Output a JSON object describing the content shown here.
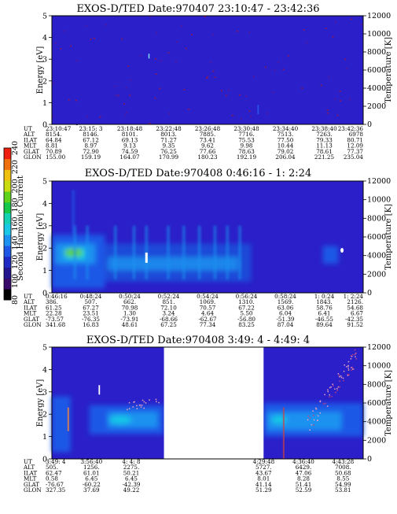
{
  "colorbar": {
    "label": "Second Harmonic Current",
    "ticks": [
      "80",
      "100",
      "120",
      "140",
      "160",
      "180",
      "200",
      "220",
      "240"
    ],
    "colors": [
      "#000000",
      "#3a0a6a",
      "#23168f",
      "#1f2bc4",
      "#1f58e6",
      "#1e92f0",
      "#19c8e6",
      "#15d2b4",
      "#16c84a",
      "#5fd21a",
      "#c8dc10",
      "#f0c010",
      "#f07010",
      "#f02010"
    ]
  },
  "chart_data": [
    {
      "type": "heatmap",
      "title": "EXOS-D/TED   Date:970407  23:10:47 - 23:42:36",
      "ylabel": "Energy [eV]",
      "y2label": "Temperature [K]",
      "ylim": [
        0,
        5
      ],
      "y2lim": [
        0,
        12000
      ],
      "yticks": [
        "0",
        "1",
        "2",
        "3",
        "4",
        "5"
      ],
      "y2ticks": [
        "0",
        "2000",
        "4000",
        "6000",
        "8000",
        "10000",
        "12000"
      ],
      "gaps": [],
      "background_color": "#2a1fc8",
      "table": {
        "rows": [
          "UT",
          "ALT",
          "ILAT",
          "MLT",
          "GLAT",
          "GLON"
        ],
        "columns": [
          [
            "23:10:47",
            "8154.",
            "64.84",
            "8.81",
            "70.89",
            "155.00"
          ],
          [
            "23:15: 3",
            "8146.",
            "67.12",
            "8.97",
            "72.90",
            "159.19"
          ],
          [
            "23:18:48",
            "8101.",
            "69.13",
            "9.13",
            "74.59",
            "164.07"
          ],
          [
            "23:22:48",
            "8013.",
            "71.27",
            "9.35",
            "76.25",
            "170.99"
          ],
          [
            "23:26:48",
            "7885.",
            "73.41",
            "9.62",
            "77.66",
            "180.23"
          ],
          [
            "23:30:48",
            "7716.",
            "75.53",
            "9.98",
            "78.63",
            "192.19"
          ],
          [
            "23:34:40",
            "7513.",
            "77.50",
            "10.44",
            "79.02",
            "206.04"
          ],
          [
            "23:38:40",
            "7263.",
            "79.33",
            "11.13",
            "78.61",
            "221.25"
          ],
          [
            "23:42:36",
            "6978",
            "80.71",
            "12.09",
            "77.37",
            "235.04"
          ]
        ]
      }
    },
    {
      "type": "heatmap",
      "title": "EXOS-D/TED   Date:970408   0:46:16 -  1: 2:24",
      "ylabel": "Energy [eV]",
      "y2label": "Temperature [K]",
      "ylim": [
        0,
        5
      ],
      "y2lim": [
        0,
        12000
      ],
      "yticks": [
        "0",
        "1",
        "2",
        "3",
        "4",
        "5"
      ],
      "y2ticks": [
        "0",
        "2000",
        "4000",
        "6000",
        "8000",
        "10000",
        "12000"
      ],
      "gaps": [],
      "background_color": "#2a1fc8",
      "table": {
        "rows": [
          "UT",
          "ALT",
          "ILAT",
          "MLT",
          "GLAT",
          "GLON"
        ],
        "columns": [
          [
            "0:46:16",
            "386.",
            "61.25",
            "22.28",
            "-73.57",
            "341.68"
          ],
          [
            "0:48:24",
            "507.",
            "67.27",
            "23.51",
            "-76.35",
            "16.83"
          ],
          [
            "0:50:24",
            "662.",
            "70.98",
            "1.30",
            "-73.91",
            "48.61"
          ],
          [
            "0:52:24",
            "851.",
            "72.10",
            "3.24",
            "-68.66",
            "67.25"
          ],
          [
            "0:54:24",
            "1069.",
            "70.57",
            "4.64",
            "-62.67",
            "77.34"
          ],
          [
            "0:56:24",
            "1310.",
            "67.22",
            "5.50",
            "-56.80",
            "83.25"
          ],
          [
            "0:58:24",
            "1569.",
            "63.06",
            "6.04",
            "-51.39",
            "87.04"
          ],
          [
            "1: 0:24",
            "1843.",
            "58.76",
            "6.41",
            "-46.55",
            "89.64"
          ],
          [
            "1: 2:24",
            "2126.",
            "54.68",
            "6.67",
            "-42.35",
            "91.52"
          ]
        ]
      }
    },
    {
      "type": "heatmap",
      "title": "EXOS-D/TED   Date:970408   3:49: 4 -  4:49: 4",
      "ylabel": "Energy [eV]",
      "y2label": "Temperature [K]",
      "ylim": [
        0,
        5
      ],
      "y2lim": [
        0,
        12000
      ],
      "yticks": [
        "0",
        "1",
        "2",
        "3",
        "4",
        "5"
      ],
      "y2ticks": [
        "0",
        "2000",
        "4000",
        "6000",
        "8000",
        "10000",
        "12000"
      ],
      "gaps": [
        [
          0.36,
          0.68
        ]
      ],
      "background_color": "#2a1fc8",
      "table": {
        "rows": [
          "UT",
          "ALT",
          "ILAT",
          "MLT",
          "GLAT",
          "GLON"
        ],
        "columns": [
          [
            "3:49: 4",
            "505.",
            "62.47",
            "0.58",
            "-76.67",
            "327.35"
          ],
          [
            "3:56:40",
            "1256.",
            "61.01",
            "6.45",
            "-60.22",
            "37.69"
          ],
          [
            "4: 4: 8",
            "2275.",
            "50.21",
            "6.45",
            "-42.39",
            "49.22"
          ],
          [
            "4:29:48",
            "5727.",
            "43.67",
            "8.01",
            "41.14",
            "51.29"
          ],
          [
            "4:36:40",
            "6429.",
            "47.06",
            "8.28",
            "51.41",
            "52.59"
          ],
          [
            "4:43:28",
            "7008.",
            "50.68",
            "8.55",
            "54.99",
            "53.81"
          ]
        ]
      }
    }
  ]
}
